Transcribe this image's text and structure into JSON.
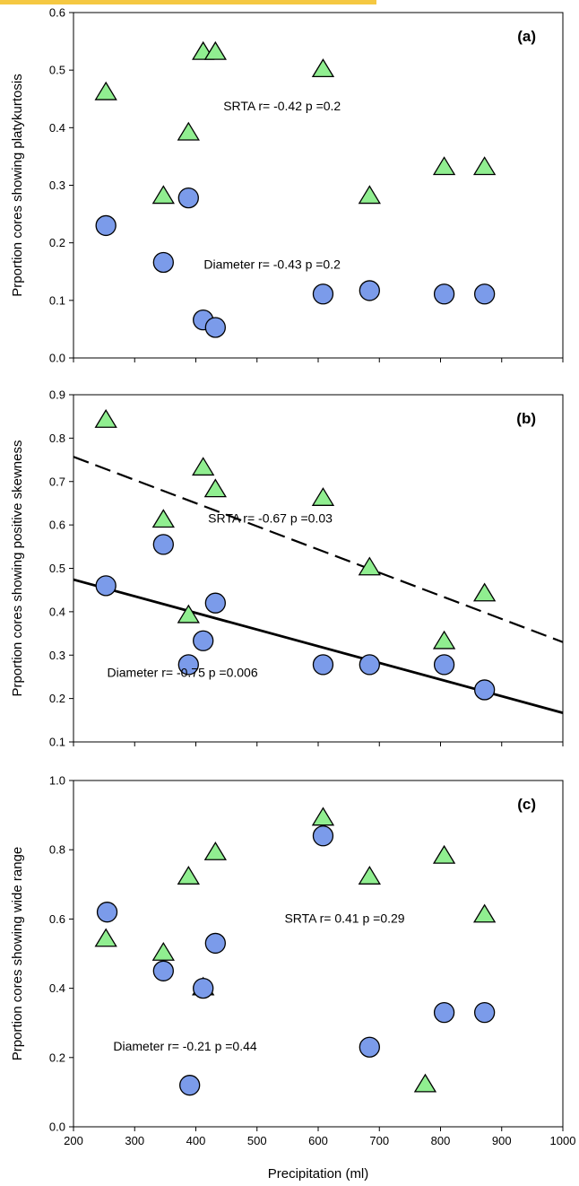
{
  "colors": {
    "triangle_fill": "#90ee90",
    "circle_fill": "#7b9bea",
    "marker_stroke": "#000000",
    "accent_strip": "#f5c842"
  },
  "xlabel": "Precipitation (ml)",
  "chart_data": [
    {
      "type": "scatter",
      "panel": "(a)",
      "xlim": [
        200,
        1000
      ],
      "ylim": [
        0.0,
        0.6
      ],
      "x_ticks": [
        "200",
        "300",
        "400",
        "500",
        "600",
        "700",
        "800",
        "900",
        "1000"
      ],
      "y_ticks": [
        "0.0",
        "0.1",
        "0.2",
        "0.3",
        "0.4",
        "0.5",
        "0.6"
      ],
      "ylabel": "Prportion cores showing platykurtosis",
      "series": [
        {
          "marker": "triangle",
          "x": [
            253,
            347,
            388,
            412,
            432,
            608,
            684,
            806,
            872
          ],
          "y": [
            0.46,
            0.28,
            0.39,
            0.53,
            0.53,
            0.5,
            0.28,
            0.33,
            0.33
          ]
        },
        {
          "marker": "circle",
          "x": [
            253,
            347,
            388,
            412,
            432,
            608,
            684,
            806,
            872
          ],
          "y": [
            0.23,
            0.166,
            0.278,
            0.066,
            0.053,
            0.111,
            0.117,
            0.111,
            0.111
          ]
        }
      ],
      "annotations": [
        {
          "text": "SRTA r= -0.42 p =0.2",
          "x": 445,
          "y": 0.43
        },
        {
          "text": "Diameter r= -0.43 p =0.2",
          "x": 413,
          "y": 0.155
        }
      ]
    },
    {
      "type": "scatter",
      "panel": "(b)",
      "xlim": [
        200,
        1000
      ],
      "ylim": [
        0.1,
        0.9
      ],
      "x_ticks": [
        "200",
        "300",
        "400",
        "500",
        "600",
        "700",
        "800",
        "900",
        "1000"
      ],
      "y_ticks": [
        "0.1",
        "0.2",
        "0.3",
        "0.4",
        "0.5",
        "0.6",
        "0.7",
        "0.8",
        "0.9"
      ],
      "ylabel": "Prportion cores showing positive skewness",
      "series": [
        {
          "marker": "triangle",
          "x": [
            253,
            347,
            388,
            412,
            432,
            608,
            684,
            806,
            872
          ],
          "y": [
            0.84,
            0.61,
            0.39,
            0.73,
            0.68,
            0.66,
            0.5,
            0.33,
            0.44
          ]
        },
        {
          "marker": "circle",
          "x": [
            253,
            347,
            388,
            412,
            432,
            608,
            684,
            806,
            872
          ],
          "y": [
            0.46,
            0.555,
            0.278,
            0.333,
            0.42,
            0.278,
            0.278,
            0.278,
            0.22
          ]
        }
      ],
      "fit_lines": [
        {
          "style": "dashed",
          "x": [
            200,
            1000
          ],
          "y": [
            0.757,
            0.33
          ]
        },
        {
          "style": "solid",
          "x": [
            200,
            1000
          ],
          "y": [
            0.474,
            0.167
          ]
        }
      ],
      "annotations": [
        {
          "text": "SRTA r= -0.67 p =0.03",
          "x": 420,
          "y": 0.605
        },
        {
          "text": "Diameter r= -0.75 p =0.006",
          "x": 255,
          "y": 0.25
        }
      ]
    },
    {
      "type": "scatter",
      "panel": "(c)",
      "xlim": [
        200,
        1000
      ],
      "ylim": [
        0.0,
        1.0
      ],
      "x_ticks": [
        "200",
        "300",
        "400",
        "500",
        "600",
        "700",
        "800",
        "900",
        "1000"
      ],
      "y_ticks": [
        "0.0",
        "0.2",
        "0.4",
        "0.6",
        "0.8",
        "1.0"
      ],
      "ylabel": "Prportion cores showing wide range",
      "series": [
        {
          "marker": "triangle",
          "x": [
            253,
            347,
            388,
            412,
            432,
            608,
            684,
            775,
            806,
            872
          ],
          "y": [
            0.54,
            0.5,
            0.72,
            0.4,
            0.79,
            0.89,
            0.72,
            0.12,
            0.78,
            0.61
          ]
        },
        {
          "marker": "circle",
          "x": [
            255,
            347,
            390,
            412,
            432,
            608,
            684,
            806,
            872
          ],
          "y": [
            0.62,
            0.45,
            0.12,
            0.4,
            0.53,
            0.84,
            0.23,
            0.33,
            0.33
          ]
        }
      ],
      "annotations": [
        {
          "text": "SRTA r= 0.41 p =0.29",
          "x": 545,
          "y": 0.59
        },
        {
          "text": "Diameter r= -0.21 p =0.44",
          "x": 265,
          "y": 0.22
        }
      ]
    }
  ]
}
